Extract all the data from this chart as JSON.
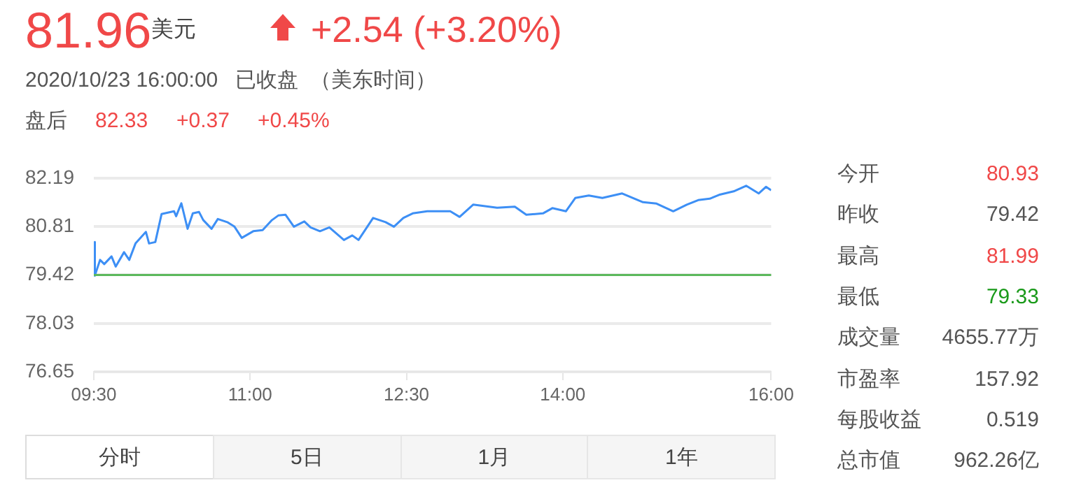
{
  "chart_data": {
    "type": "line",
    "title": "81.96",
    "subtitle": "2020/10/23 16:00:00   已收盘  （美东时间）",
    "annotations": [
      "美元",
      "+2.54 (+3.20%)",
      "盘后",
      "82.33",
      "+0.37",
      "+0.45%",
      "今开",
      "80.93",
      "昨收",
      "79.42",
      "最高",
      "81.99",
      "最低",
      "79.33",
      "成交量",
      "4655.77万",
      "市盈率",
      "157.92",
      "每股收益",
      "0.519",
      "总市值",
      "962.26亿",
      "分时",
      "5日",
      "1月",
      "1年"
    ],
    "x": [
      9.5,
      9.51,
      9.56,
      9.6,
      9.67,
      9.71,
      9.79,
      9.84,
      9.9,
      10.0,
      10.03,
      10.09,
      10.15,
      10.21,
      10.27,
      10.29,
      10.34,
      10.4,
      10.45,
      10.51,
      10.55,
      10.63,
      10.69,
      10.78,
      10.85,
      10.92,
      11.03,
      11.12,
      11.21,
      11.27,
      11.34,
      11.42,
      11.52,
      11.58,
      11.67,
      11.76,
      11.9,
      11.98,
      12.04,
      12.18,
      12.3,
      12.38,
      12.47,
      12.56,
      12.7,
      12.92,
      13.01,
      13.14,
      13.37,
      13.54,
      13.65,
      13.81,
      13.9,
      14.03,
      14.12,
      14.25,
      14.38,
      14.57,
      14.77,
      14.9,
      15.06,
      15.19,
      15.3,
      15.41,
      15.5,
      15.64,
      15.76,
      15.88,
      15.95,
      16.0
    ],
    "values": [
      80.36,
      79.4,
      79.85,
      79.73,
      79.95,
      79.66,
      80.07,
      79.85,
      80.32,
      80.65,
      80.32,
      80.36,
      81.16,
      81.2,
      81.24,
      81.1,
      81.47,
      80.74,
      81.18,
      81.22,
      80.99,
      80.74,
      81.02,
      80.93,
      80.8,
      80.48,
      80.67,
      80.7,
      80.99,
      81.12,
      81.14,
      80.8,
      80.95,
      80.78,
      80.67,
      80.78,
      80.42,
      80.55,
      80.42,
      81.05,
      80.93,
      80.8,
      81.05,
      81.18,
      81.24,
      81.24,
      81.08,
      81.43,
      81.34,
      81.37,
      81.14,
      81.18,
      81.33,
      81.24,
      81.62,
      81.69,
      81.62,
      81.75,
      81.5,
      81.46,
      81.24,
      81.43,
      81.56,
      81.6,
      81.71,
      81.81,
      81.97,
      81.75,
      81.94,
      81.84
    ],
    "color": "#3d8ff5",
    "marker": "none",
    "grid": "y",
    "xlim": [
      9.5,
      16
    ],
    "xticks": [
      {
        "value": 9.5,
        "label": "09:30"
      },
      {
        "value": 11,
        "label": "11:00"
      },
      {
        "value": 12.5,
        "label": "12:30"
      },
      {
        "value": 14,
        "label": "14:00"
      },
      {
        "value": 16,
        "label": "16:00"
      }
    ],
    "ylim": [
      76.65,
      82.19
    ],
    "yticks": [
      76.65,
      78.03,
      79.42,
      80.81,
      82.19
    ],
    "ref_lines": [
      {
        "axis": "y",
        "value": 79.42,
        "color": "#5cb85c"
      }
    ]
  }
}
